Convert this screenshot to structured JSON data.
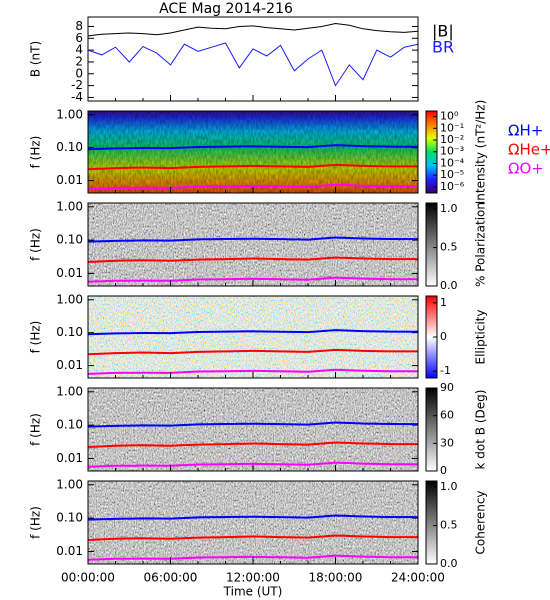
{
  "title": "ACE Mag 2014-216",
  "chart_data": [
    {
      "type": "line",
      "ylabel": "B (nT)",
      "x": [
        0,
        1,
        2,
        3,
        4,
        5,
        6,
        7,
        8,
        9,
        10,
        11,
        12,
        13,
        14,
        15,
        16,
        17,
        18,
        19,
        20,
        21,
        22,
        23,
        24
      ],
      "xlim": [
        0,
        24
      ],
      "ylim": [
        -4.6,
        9.6
      ],
      "yticks": [
        -4,
        -2,
        0,
        2,
        4,
        6,
        8
      ],
      "series": [
        {
          "name": "|B|",
          "color": "#000000",
          "values": [
            6.4,
            6.7,
            6.8,
            6.9,
            6.8,
            6.6,
            6.9,
            7.4,
            7.9,
            7.7,
            7.6,
            8.0,
            8.1,
            7.8,
            7.6,
            7.4,
            7.7,
            8.0,
            8.5,
            8.2,
            7.6,
            7.3,
            7.1,
            7.0,
            7.2
          ]
        },
        {
          "name": "BR",
          "color": "#1a1aff",
          "values": [
            4.0,
            3.2,
            4.5,
            2.0,
            4.6,
            3.5,
            1.5,
            5.0,
            3.8,
            4.5,
            5.2,
            1.0,
            4.2,
            3.0,
            4.8,
            0.5,
            2.5,
            4.0,
            -2.0,
            1.5,
            -1.0,
            4.0,
            2.8,
            4.5,
            5.0
          ]
        }
      ]
    },
    {
      "type": "spectrogram",
      "ylabel": "f (Hz)",
      "log_y": true,
      "ylim": [
        0.0042,
        1.3
      ],
      "yticks": [
        {
          "value": 1,
          "label": "1.00"
        },
        {
          "value": 0.1,
          "label": "0.10"
        },
        0.01
      ],
      "x": [
        0,
        2,
        4,
        6,
        8,
        10,
        12,
        14,
        16,
        18,
        20,
        22,
        24
      ],
      "xlim": [
        0,
        24
      ],
      "colorbar": {
        "label": "Intensity (nT²/Hz)",
        "log": true,
        "clim": [
          3e-07,
          3
        ],
        "ticks": [
          {
            "value": 1,
            "label": "10⁰"
          },
          {
            "value": 0.1,
            "label": "10⁻¹"
          },
          {
            "value": 0.01,
            "label": "10⁻²"
          },
          {
            "value": 0.001,
            "label": "10⁻³"
          },
          {
            "value": 0.0001,
            "label": "10⁻⁴"
          },
          {
            "value": 1e-05,
            "label": "10⁻⁵"
          },
          {
            "value": 1e-06,
            "label": "10⁻⁶"
          }
        ],
        "colors": [
          "#3a0070",
          "#2020ff",
          "#00c0ff",
          "#00e060",
          "#e0ff00",
          "#ff8000",
          "#ff0000"
        ]
      },
      "series": [
        {
          "name": "ΩH+",
          "color": "#0000ff",
          "values": [
            0.09,
            0.095,
            0.098,
            0.097,
            0.105,
            0.108,
            0.11,
            0.107,
            0.104,
            0.12,
            0.112,
            0.108,
            0.107
          ]
        },
        {
          "name": "ΩHe+",
          "color": "#ff0000",
          "values": [
            0.022,
            0.024,
            0.025,
            0.024,
            0.026,
            0.027,
            0.028,
            0.027,
            0.026,
            0.03,
            0.028,
            0.027,
            0.027
          ]
        },
        {
          "name": "ΩO+",
          "color": "#ff00ff",
          "values": [
            0.0056,
            0.006,
            0.0061,
            0.006,
            0.0066,
            0.0067,
            0.0069,
            0.0067,
            0.0065,
            0.0075,
            0.007,
            0.0067,
            0.0067
          ]
        }
      ]
    },
    {
      "type": "spectrogram",
      "ylabel": "f (Hz)",
      "log_y": true,
      "ylim": [
        0.0042,
        1.3
      ],
      "yticks": [
        {
          "value": 1,
          "label": "1.00"
        },
        {
          "value": 0.1,
          "label": "0.10"
        },
        0.01
      ],
      "x": [
        0,
        2,
        4,
        6,
        8,
        10,
        12,
        14,
        16,
        18,
        20,
        22,
        24
      ],
      "xlim": [
        0,
        24
      ],
      "colorbar": {
        "label": "% Polarization",
        "log": false,
        "clim": [
          0,
          1.08
        ],
        "ticks": [
          {
            "value": 0,
            "label": "0.0"
          },
          {
            "value": 0.5,
            "label": "0.5"
          },
          {
            "value": 1,
            "label": "1.0"
          }
        ],
        "colors": [
          "#ffffff",
          "#000000"
        ]
      },
      "series": [
        {
          "color": "#0000ff",
          "values": [
            0.09,
            0.095,
            0.098,
            0.097,
            0.105,
            0.108,
            0.11,
            0.107,
            0.104,
            0.12,
            0.112,
            0.108,
            0.107
          ]
        },
        {
          "color": "#ff0000",
          "values": [
            0.022,
            0.024,
            0.025,
            0.024,
            0.026,
            0.027,
            0.028,
            0.027,
            0.026,
            0.03,
            0.028,
            0.027,
            0.027
          ]
        },
        {
          "color": "#ff00ff",
          "values": [
            0.0056,
            0.006,
            0.0061,
            0.006,
            0.0066,
            0.0067,
            0.0069,
            0.0067,
            0.0065,
            0.0075,
            0.007,
            0.0067,
            0.0067
          ]
        }
      ]
    },
    {
      "type": "spectrogram",
      "ylabel": "f (Hz)",
      "log_y": true,
      "ylim": [
        0.0042,
        1.3
      ],
      "yticks": [
        {
          "value": 1,
          "label": "1.00"
        },
        {
          "value": 0.1,
          "label": "0.10"
        },
        0.01
      ],
      "x": [
        0,
        2,
        4,
        6,
        8,
        10,
        12,
        14,
        16,
        18,
        20,
        22,
        24
      ],
      "xlim": [
        0,
        24
      ],
      "colorbar": {
        "label": "Ellipticity",
        "log": false,
        "clim": [
          -1.2,
          1.2
        ],
        "ticks": [
          -1,
          0,
          1
        ],
        "colors": [
          "#0000ff",
          "#ffffff",
          "#ff0000"
        ]
      },
      "series": [
        {
          "color": "#0000ff",
          "values": [
            0.09,
            0.095,
            0.098,
            0.097,
            0.105,
            0.108,
            0.11,
            0.107,
            0.104,
            0.12,
            0.112,
            0.108,
            0.107
          ]
        },
        {
          "color": "#ff0000",
          "values": [
            0.022,
            0.024,
            0.025,
            0.024,
            0.026,
            0.027,
            0.028,
            0.027,
            0.026,
            0.03,
            0.028,
            0.027,
            0.027
          ]
        },
        {
          "color": "#ff00ff",
          "values": [
            0.0056,
            0.006,
            0.0061,
            0.006,
            0.0066,
            0.0067,
            0.0069,
            0.0067,
            0.0065,
            0.0075,
            0.007,
            0.0067,
            0.0067
          ]
        }
      ]
    },
    {
      "type": "spectrogram",
      "ylabel": "f (Hz)",
      "log_y": true,
      "ylim": [
        0.0042,
        1.3
      ],
      "yticks": [
        {
          "value": 1,
          "label": "1.00"
        },
        {
          "value": 0.1,
          "label": "0.10"
        },
        0.01
      ],
      "x": [
        0,
        2,
        4,
        6,
        8,
        10,
        12,
        14,
        16,
        18,
        20,
        22,
        24
      ],
      "xlim": [
        0,
        24
      ],
      "colorbar": {
        "label": "k dot B (Deg)",
        "log": false,
        "clim": [
          0,
          90
        ],
        "ticks": [
          0,
          30,
          60,
          90
        ],
        "colors": [
          "#ffffff",
          "#000000"
        ]
      },
      "series": [
        {
          "color": "#0000ff",
          "values": [
            0.09,
            0.095,
            0.098,
            0.097,
            0.105,
            0.108,
            0.11,
            0.107,
            0.104,
            0.12,
            0.112,
            0.108,
            0.107
          ]
        },
        {
          "color": "#ff0000",
          "values": [
            0.022,
            0.024,
            0.025,
            0.024,
            0.026,
            0.027,
            0.028,
            0.027,
            0.026,
            0.03,
            0.028,
            0.027,
            0.027
          ]
        },
        {
          "color": "#ff00ff",
          "values": [
            0.0056,
            0.006,
            0.0061,
            0.006,
            0.0066,
            0.0067,
            0.0069,
            0.0067,
            0.0065,
            0.0075,
            0.007,
            0.0067,
            0.0067
          ]
        }
      ]
    },
    {
      "type": "spectrogram",
      "ylabel": "f (Hz)",
      "log_y": true,
      "ylim": [
        0.0042,
        1.3
      ],
      "yticks": [
        {
          "value": 1,
          "label": "1.00"
        },
        {
          "value": 0.1,
          "label": "0.10"
        },
        0.01
      ],
      "x": [
        0,
        2,
        4,
        6,
        8,
        10,
        12,
        14,
        16,
        18,
        20,
        22,
        24
      ],
      "xlim": [
        0,
        24
      ],
      "xticks": [
        {
          "value": 0,
          "label": "00:00:00"
        },
        {
          "value": 6,
          "label": "06:00:00"
        },
        {
          "value": 12,
          "label": "12:00:00"
        },
        {
          "value": 18,
          "label": "18:00:00"
        },
        {
          "value": 24,
          "label": "24:00:00"
        }
      ],
      "xlabel": "Time (UT)",
      "colorbar": {
        "label": "Coherency",
        "log": false,
        "clim": [
          0,
          1.08
        ],
        "ticks": [
          {
            "value": 0,
            "label": "0.0"
          },
          {
            "value": 0.5,
            "label": "0.5"
          },
          {
            "value": 1,
            "label": "1.0"
          }
        ],
        "colors": [
          "#ffffff",
          "#000000"
        ]
      },
      "series": [
        {
          "color": "#0000ff",
          "values": [
            0.09,
            0.095,
            0.098,
            0.097,
            0.105,
            0.108,
            0.11,
            0.107,
            0.104,
            0.12,
            0.112,
            0.108,
            0.107
          ]
        },
        {
          "color": "#ff0000",
          "values": [
            0.022,
            0.024,
            0.025,
            0.024,
            0.026,
            0.027,
            0.028,
            0.027,
            0.026,
            0.03,
            0.028,
            0.027,
            0.027
          ]
        },
        {
          "color": "#ff00ff",
          "values": [
            0.0056,
            0.006,
            0.0061,
            0.006,
            0.0066,
            0.0067,
            0.0069,
            0.0067,
            0.0065,
            0.0075,
            0.007,
            0.0067,
            0.0067
          ]
        }
      ]
    }
  ]
}
